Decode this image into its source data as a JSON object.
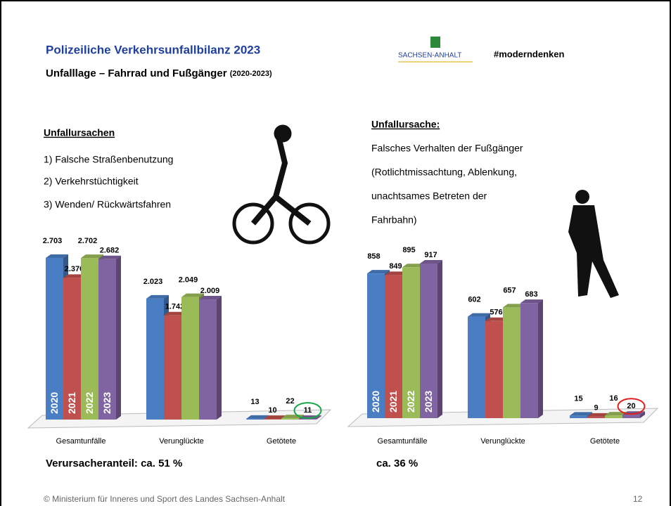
{
  "header": {
    "title": "Polizeiliche Verkehrsunfallbilanz 2023",
    "subtitle": "Unfalllage – Fahrrad und Fußgänger",
    "subtitle_note": "(2020-2023)",
    "logo": "SACHSEN-ANHALT",
    "hashtag": "#moderndenken"
  },
  "left_text": {
    "heading": "Unfallursachen",
    "items": [
      "1) Falsche Straßenbenutzung",
      "2) Verkehrstüchtigkeit",
      "3) Wenden/ Rückwärtsfahren"
    ]
  },
  "right_text": {
    "heading": "Unfallursache:",
    "lines": [
      "Falsches Verhalten der Fußgänger",
      "(Rotlichtmissachtung, Ablenkung,",
      "unachtsames Betreten der",
      "Fahrbahn)"
    ]
  },
  "chart_data": [
    {
      "type": "bar",
      "categories": [
        "Gesamtunfälle",
        "Verunglückte",
        "Getötete"
      ],
      "note": "Verursacheranteil: ca. 51 %",
      "series": [
        {
          "name": "2020",
          "color": "#4a7ec4",
          "values": [
            2703,
            2023,
            13
          ],
          "value_labels": [
            "2.703",
            "2.023",
            "13"
          ]
        },
        {
          "name": "2021",
          "color": "#c0504d",
          "values": [
            2370,
            1742,
            10
          ],
          "value_labels": [
            "2.370",
            "1.742",
            "10"
          ]
        },
        {
          "name": "2022",
          "color": "#9bbb59",
          "values": [
            2702,
            2049,
            22
          ],
          "value_labels": [
            "2.702",
            "2.049",
            "22"
          ]
        },
        {
          "name": "2023",
          "color": "#8064a2",
          "values": [
            2682,
            2009,
            11
          ],
          "value_labels": [
            "2.682",
            "2.009",
            "11"
          ]
        }
      ]
    },
    {
      "type": "bar",
      "categories": [
        "Gesamtunfälle",
        "Verunglückte",
        "Getötete"
      ],
      "note": "ca. 36 %",
      "series": [
        {
          "name": "2020",
          "color": "#4a7ec4",
          "values": [
            858,
            602,
            15
          ],
          "value_labels": [
            "858",
            "602",
            "15"
          ]
        },
        {
          "name": "2021",
          "color": "#c0504d",
          "values": [
            849,
            576,
            9
          ],
          "value_labels": [
            "849",
            "576",
            "9"
          ]
        },
        {
          "name": "2022",
          "color": "#9bbb59",
          "values": [
            895,
            657,
            16
          ],
          "value_labels": [
            "895",
            "657",
            "16"
          ]
        },
        {
          "name": "2023",
          "color": "#8064a2",
          "values": [
            917,
            683,
            20
          ],
          "value_labels": [
            "917",
            "683",
            "20"
          ]
        }
      ]
    }
  ],
  "footer": {
    "copyright": "© Ministerium für Inneres und Sport des Landes Sachsen-Anhalt",
    "page": "12"
  }
}
